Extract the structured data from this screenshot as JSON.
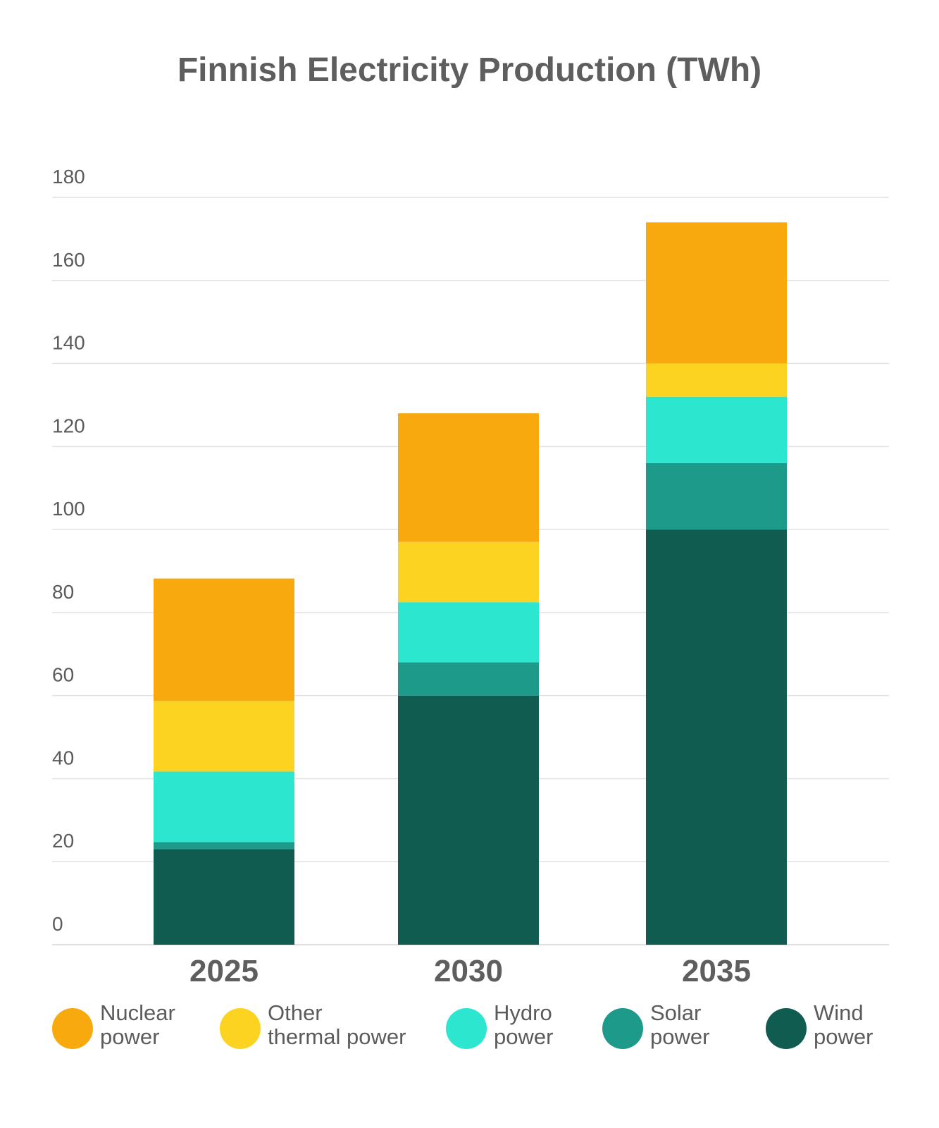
{
  "title": "Finnish Electricity Production (TWh)",
  "chart_data": {
    "type": "bar",
    "stacked": true,
    "title": "Finnish Electricity Production (TWh)",
    "categories": [
      "2025",
      "2030",
      "2035"
    ],
    "ylim": [
      0,
      180
    ],
    "yticks": [
      0,
      20,
      40,
      60,
      80,
      100,
      120,
      140,
      160,
      180
    ],
    "grid": true,
    "legend_position": "bottom",
    "series": [
      {
        "name": "Wind power",
        "legend_lines": [
          "Wind",
          "power"
        ],
        "color": "#115c51",
        "values": [
          23,
          60,
          100
        ]
      },
      {
        "name": "Solar power",
        "legend_lines": [
          "Solar",
          "power"
        ],
        "color": "#1e9a8a",
        "values": [
          1.7,
          8,
          16
        ]
      },
      {
        "name": "Hydro power",
        "legend_lines": [
          "Hydro",
          "power"
        ],
        "color": "#2de6d0",
        "values": [
          17,
          14.5,
          16
        ]
      },
      {
        "name": "Other thermal power",
        "legend_lines": [
          "Other",
          "thermal power"
        ],
        "color": "#fdd321",
        "values": [
          17,
          14.5,
          8
        ]
      },
      {
        "name": "Nuclear power",
        "legend_lines": [
          "Nuclear",
          "power"
        ],
        "color": "#f8a90e",
        "values": [
          29.5,
          31,
          34
        ]
      }
    ],
    "legend_order": [
      "Nuclear power",
      "Other thermal power",
      "Hydro power",
      "Solar power",
      "Wind power"
    ]
  }
}
